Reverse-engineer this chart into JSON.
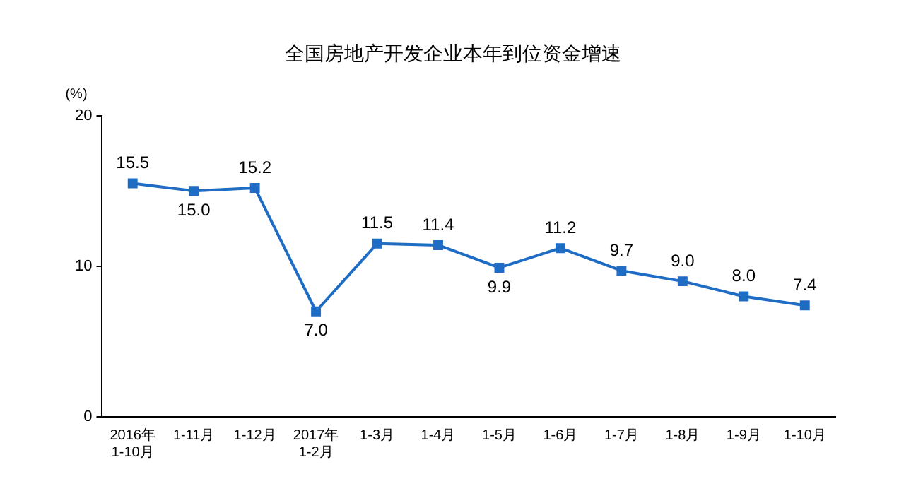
{
  "chart_data": {
    "type": "line",
    "title": "全国房地产开发企业本年到位资金增速",
    "ylabel": "(%)",
    "categories": [
      "2016年\n1-10月",
      "1-11月",
      "1-12月",
      "2017年\n1-2月",
      "1-3月",
      "1-4月",
      "1-5月",
      "1-6月",
      "1-7月",
      "1-8月",
      "1-9月",
      "1-10月"
    ],
    "series": [
      {
        "color": "#1f6cc4",
        "values": [
          15.5,
          15.0,
          15.2,
          7.0,
          11.5,
          11.4,
          9.9,
          11.2,
          9.7,
          9.0,
          8.0,
          7.4
        ],
        "value_labels": [
          "15.5",
          "15.0",
          "15.2",
          "7.0",
          "11.5",
          "11.4",
          "9.9",
          "11.2",
          "9.7",
          "9.0",
          "8.0",
          "7.4"
        ]
      }
    ],
    "ylim": [
      0,
      20
    ],
    "yticks": [
      0,
      10,
      20
    ],
    "grid": false,
    "legend": false,
    "marker": "square",
    "line_style": "solid"
  }
}
